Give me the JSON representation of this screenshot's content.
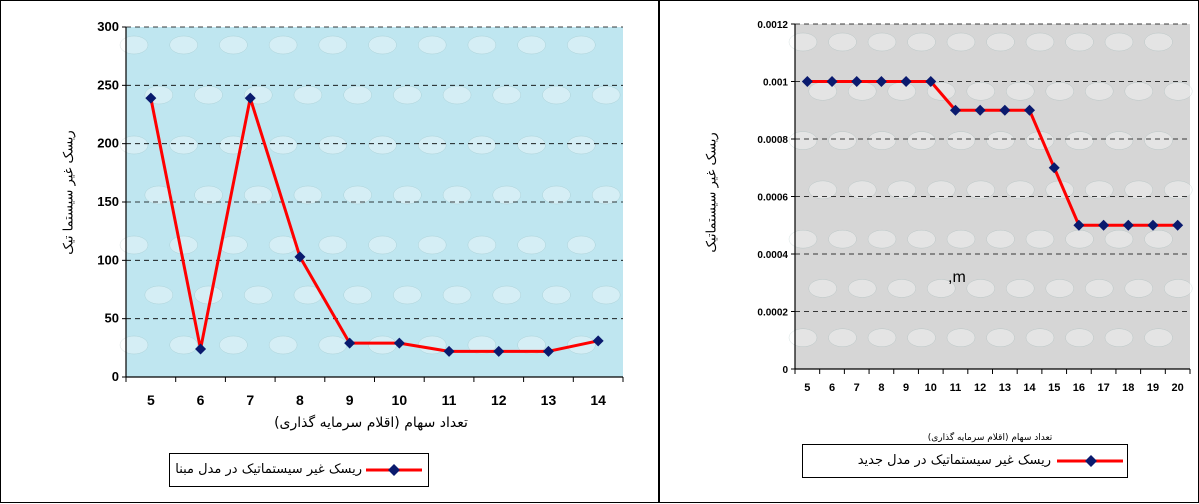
{
  "chart_data": [
    {
      "type": "line",
      "x": [
        5,
        6,
        7,
        8,
        9,
        10,
        11,
        12,
        13,
        14
      ],
      "series": [
        {
          "name": "ریسک غیر سیستماتیک در مدل مبنا",
          "values": [
            239,
            24,
            239,
            103,
            29,
            29,
            22,
            22,
            22,
            31
          ]
        }
      ],
      "xlabel": "تعداد سهام (اقلام سرمایه گذاری)",
      "ylabel": "ریسک غیر سیستما تیک",
      "ylim": [
        0,
        300
      ],
      "yticks": [
        "0",
        "50",
        "100",
        "150",
        "200",
        "250",
        "300"
      ],
      "grid": true,
      "legend": "bottom",
      "colors": {
        "line": "#ff0000",
        "marker": "#0a1a6e",
        "plot_bg": "#bfe6f0"
      }
    },
    {
      "type": "line",
      "x": [
        5,
        6,
        7,
        8,
        9,
        10,
        11,
        12,
        13,
        14,
        15,
        16,
        17,
        18,
        19,
        20
      ],
      "series": [
        {
          "name": "ریسک غیر سیستماتیک در مدل جدید",
          "values": [
            0.001,
            0.001,
            0.001,
            0.001,
            0.001,
            0.001,
            0.0009,
            0.0009,
            0.0009,
            0.0009,
            0.0007,
            0.0005,
            0.0005,
            0.0005,
            0.0005,
            0.0005
          ]
        }
      ],
      "xlabel": "تعداد سهام (اقلام سرمایه گذاری)",
      "ylabel": "ریسک غیر سیستماتیک",
      "ylim": [
        0,
        0.0012
      ],
      "yticks": [
        "0",
        "0.0002",
        "0.0004",
        "0.0006",
        "0.0008",
        "0.001",
        "0.0012"
      ],
      "annotation": ",m",
      "grid": true,
      "legend": "bottom",
      "colors": {
        "line": "#ff0000",
        "marker": "#0a1a6e",
        "plot_bg": "#d6d6d6"
      }
    }
  ]
}
